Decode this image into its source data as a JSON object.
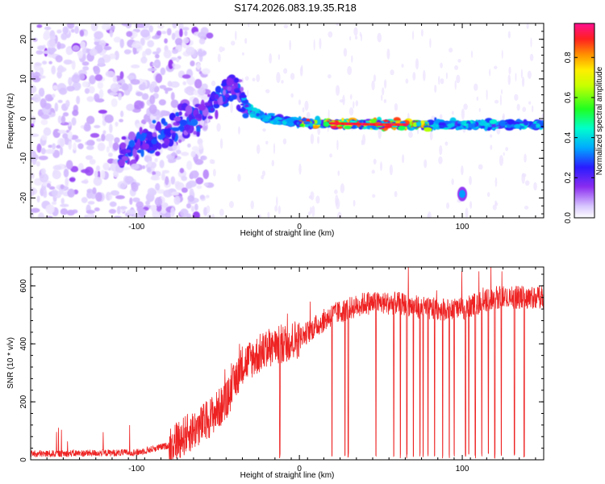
{
  "title": "S174.2026.083.19.35.R18",
  "colors": {
    "snr_line": "#ee2222",
    "axis": "#000000"
  },
  "chart_data": [
    {
      "type": "heatmap",
      "name": "spectrogram",
      "xlabel": "Height of straight line (km)",
      "ylabel": "Frequency (Hz)",
      "xlim": [
        -165,
        150
      ],
      "ylim": [
        -25,
        24
      ],
      "xticks": [
        -100,
        0,
        100
      ],
      "yticks": [
        -20,
        -10,
        0,
        10,
        20
      ],
      "colorbar": {
        "label": "Normalized spectral amplitude",
        "range": [
          0,
          0.97
        ],
        "ticks": [
          "0.0",
          "0.2",
          "0.4",
          "0.6",
          "0.8"
        ],
        "stops": [
          "#ffffff",
          "#c9b0ff",
          "#7a1cf0",
          "#2020ff",
          "#00c8ff",
          "#00ff80",
          "#40ff00",
          "#ffff00",
          "#ff9a00",
          "#ff2020",
          "#ff1090"
        ]
      },
      "ridge": {
        "description_points_km_hz": [
          [
            -100,
            -7
          ],
          [
            -80,
            -3
          ],
          [
            -60,
            2
          ],
          [
            -40,
            8
          ],
          [
            -30,
            2
          ],
          [
            -20,
            0
          ],
          [
            0,
            -1
          ],
          [
            50,
            -1.5
          ],
          [
            100,
            -1.5
          ],
          [
            150,
            -1.5
          ]
        ]
      },
      "isolated_blob": {
        "x": 100,
        "y": -19,
        "amplitude": 0.35
      }
    },
    {
      "type": "line",
      "name": "snr",
      "xlabel": "Height of straight line (km)",
      "ylabel": "SNR (10 * v/v)",
      "xlim": [
        -165,
        150
      ],
      "ylim": [
        0,
        665
      ],
      "xticks": [
        -100,
        0,
        100
      ],
      "yticks": [
        0,
        200,
        400,
        600
      ],
      "key_points": [
        [
          -165,
          20
        ],
        [
          -100,
          25
        ],
        [
          -80,
          50
        ],
        [
          -60,
          120
        ],
        [
          -45,
          200
        ],
        [
          -35,
          330
        ],
        [
          -20,
          380
        ],
        [
          0,
          420
        ],
        [
          20,
          500
        ],
        [
          40,
          540
        ],
        [
          60,
          540
        ],
        [
          80,
          520
        ],
        [
          100,
          520
        ],
        [
          120,
          560
        ],
        [
          150,
          560
        ]
      ],
      "dropouts_km": [
        -12,
        20,
        28,
        30,
        47,
        58,
        62,
        66,
        70,
        74,
        76,
        79,
        83,
        88,
        92,
        95,
        102,
        104,
        108,
        112,
        116,
        120,
        124,
        132,
        138
      ]
    }
  ]
}
